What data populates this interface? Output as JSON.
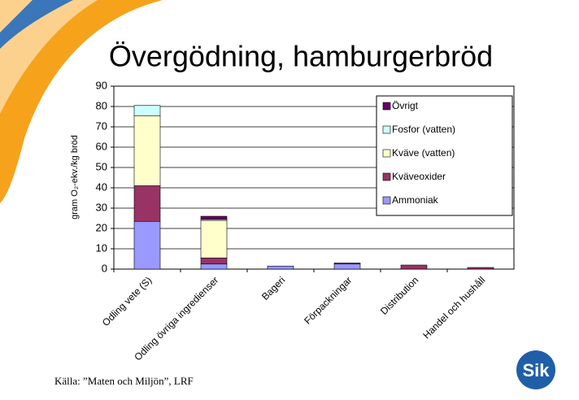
{
  "chart_data": {
    "type": "stacked_bar",
    "title": "Övergödning, hamburgerbröd",
    "y_label": "gram O₂-ekv./kg bröd",
    "source": "Källa: ”Maten och Miljön”, LRF",
    "logo_text": "Sik",
    "categories": [
      "Odling vete (S)",
      "Odling övriga ingredienser",
      "Bageri",
      "Förpackningar",
      "Distribution",
      "Handel och hushåll"
    ],
    "series": [
      {
        "name": "Ammoniak",
        "color": "#9999ff",
        "values": [
          23.5,
          2.5,
          1.5,
          2.5,
          0,
          0
        ]
      },
      {
        "name": "Kväveoxider",
        "color": "#993366",
        "values": [
          17.5,
          3,
          0,
          0.5,
          2,
          0.8
        ]
      },
      {
        "name": "Kväve (vatten)",
        "color": "#ffffcc",
        "values": [
          34.5,
          18.5,
          0,
          0,
          0,
          0
        ]
      },
      {
        "name": "Fosfor (vatten)",
        "color": "#ccffff",
        "values": [
          5,
          0.5,
          0,
          0,
          0,
          0
        ]
      },
      {
        "name": "Övrigt",
        "color": "#660066",
        "values": [
          0,
          1.5,
          0,
          0,
          0,
          0
        ]
      }
    ],
    "ylim": [
      0,
      90
    ],
    "yticks": [
      0,
      10,
      20,
      30,
      40,
      50,
      60,
      70,
      80,
      90
    ],
    "grid": true,
    "legend": "upper right"
  }
}
